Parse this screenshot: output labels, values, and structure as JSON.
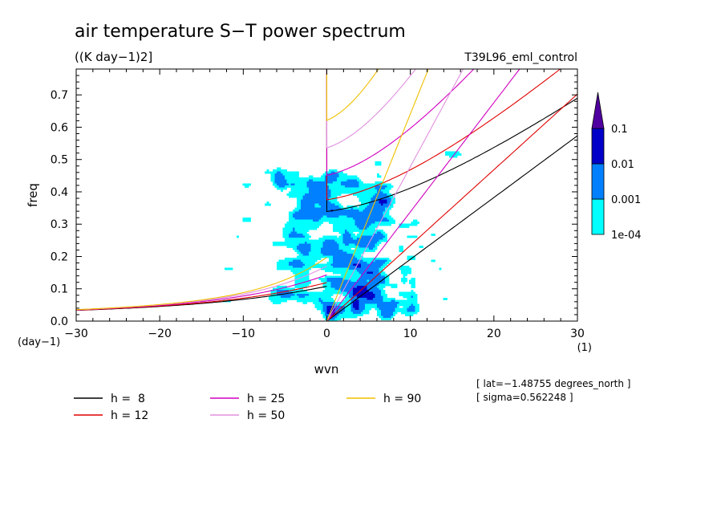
{
  "chart_data": {
    "type": "heatmap",
    "title": "air temperature S−T power spectrum",
    "subtitle": "((K day−1)2]",
    "run_label": "T39L96_eml_control",
    "xlabel": "wvn",
    "ylabel": "freq",
    "x_unit": "(1)",
    "y_unit": "(day−1)",
    "xlim": [
      -30,
      30
    ],
    "ylim": [
      0,
      0.78
    ],
    "x_ticks": [
      -30,
      -20,
      -10,
      0,
      10,
      20,
      30
    ],
    "y_ticks": [
      0.0,
      0.1,
      0.2,
      0.3,
      0.4,
      0.5,
      0.6,
      0.7
    ],
    "x_tick_labels": [
      "−30",
      "−20",
      "−10",
      "0",
      "10",
      "20",
      "30"
    ],
    "y_tick_labels": [
      "0.0",
      "0.1",
      "0.2",
      "0.3",
      "0.4",
      "0.5",
      "0.6",
      "0.7"
    ],
    "colorbar": {
      "levels": [
        "1e-04",
        "0.001",
        "0.01",
        "0.1"
      ],
      "colors": [
        "#00ffff",
        "#0080ff",
        "#0000c8",
        "#5000a0"
      ]
    },
    "dispersion_curves": [
      {
        "h": 8,
        "label": "h =  8",
        "color": "#000000"
      },
      {
        "h": 12,
        "label": "h = 12",
        "color": "#e00000"
      },
      {
        "h": 25,
        "label": "h = 25",
        "color": "#d000c0"
      },
      {
        "h": 50,
        "label": "h = 50",
        "color": "#e090e0"
      },
      {
        "h": 90,
        "label": "h = 90",
        "color": "#f0c000"
      }
    ],
    "annotations": [
      "[ lat=−1.48755 degrees_north ]",
      "[ sigma=0.562248 ]"
    ]
  }
}
